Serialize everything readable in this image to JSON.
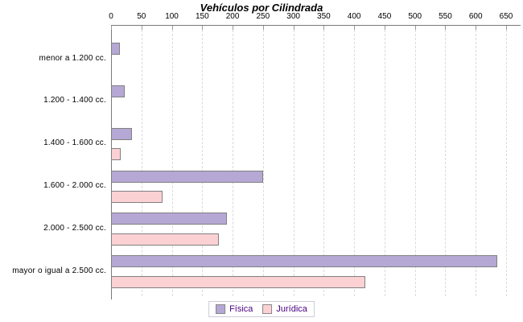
{
  "title": "Vehículos por Cilindrada",
  "chart_data": {
    "type": "bar",
    "orientation": "horizontal",
    "title": "Vehículos por Cilindrada",
    "categories": [
      "menor a 1.200 cc.",
      "1.200 - 1.400 cc.",
      "1.400 - 1.600 cc.",
      "1.600 - 2.000 cc.",
      "2.000 - 2.500 cc.",
      "mayor o igual a 2.500 cc."
    ],
    "series": [
      {
        "name": "Física",
        "color": "#b5a8d5",
        "values": [
          14,
          23,
          35,
          250,
          190,
          635
        ]
      },
      {
        "name": "Jurídica",
        "color": "#fcd1d4",
        "values": [
          0,
          0,
          16,
          85,
          178,
          418
        ]
      }
    ],
    "xlim": [
      0,
      650
    ],
    "xticks": [
      0,
      50,
      100,
      150,
      200,
      250,
      300,
      350,
      400,
      450,
      500,
      550,
      600,
      650
    ],
    "grid": "vertical-dashed",
    "legend_position": "bottom",
    "bar_outline_color": "#808080"
  },
  "legend": {
    "items": [
      {
        "label": "Física",
        "color": "#b5a8d5"
      },
      {
        "label": "Jurídica",
        "color": "#fcd1d4"
      }
    ]
  },
  "colors": {
    "title_text": "#000000",
    "axis_line": "#7a7a7a",
    "gridline": "#d9d9d9",
    "category_text": "#000000",
    "tick_text": "#000000",
    "legend_text": "#4b0082",
    "legend_border": "#ccccda"
  }
}
